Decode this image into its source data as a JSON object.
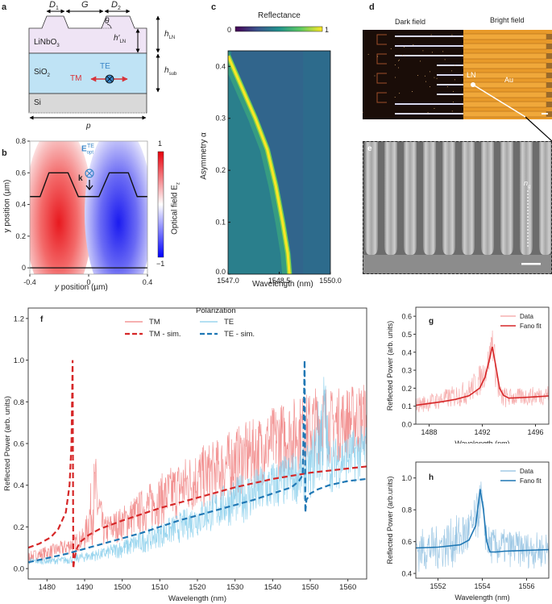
{
  "panels": {
    "a": {
      "label": "a",
      "dims": {
        "D1": "D",
        "D1_sub": "1",
        "G": "G",
        "D2": "D",
        "D2_sub": "2",
        "theta": "θ",
        "h_LN_prime": "h′",
        "h_LN_prime_sub": "LN",
        "h_LN": "h",
        "h_LN_sub": "LN",
        "h_sub": "h",
        "h_sub_sub": "sub",
        "p": "p"
      },
      "layers": [
        {
          "name": "LiNbO",
          "sub": "3",
          "color": "#efe4f5"
        },
        {
          "name": "SiO",
          "sub": "2",
          "color": "#bfe3f5"
        },
        {
          "name": "Si",
          "sub": "",
          "color": "#d9d9d9"
        }
      ],
      "polarization": {
        "te": "TE",
        "tm": "TM",
        "te_color": "#3a86c8",
        "tm_color": "#d8343a"
      }
    },
    "b": {
      "label": "b",
      "xlabel": "y position (µm)",
      "ylabel": "y position (µm)",
      "xticks": [
        "-0.4",
        "0",
        "0.4"
      ],
      "yticks": [
        "0",
        "0.2",
        "0.4",
        "0.6",
        "0.8"
      ],
      "annot_e": "E",
      "annot_e_sup": "TE",
      "annot_e_sub": "opt",
      "annot_k": "k",
      "colorbar_label": "Optical field E",
      "colorbar_label_sub": "z",
      "colorbar_max": "1",
      "colorbar_min": "−1"
    },
    "c": {
      "label": "c",
      "colorbar_title": "Reflectance",
      "colorbar_min": "0",
      "colorbar_max": "1",
      "xlabel": "Wavelength (nm)",
      "ylabel": "Asymmetry α"
    },
    "d": {
      "label": "d",
      "dark_field": "Dark field",
      "bright_field": "Bright field",
      "ln_label": "LN",
      "au_label": "Au"
    },
    "e": {
      "label": "e",
      "n_label": "n",
      "n_sub": "g"
    },
    "f": {
      "label": "f"
    },
    "g": {
      "label": "g"
    },
    "h": {
      "label": "h"
    }
  },
  "chart_data": [
    {
      "id": "b",
      "type": "heatmap",
      "title": "",
      "xlabel": "y position (µm)",
      "ylabel": "y position (µm)",
      "xlim": [
        -0.4,
        0.4
      ],
      "ylim": [
        -0.04,
        0.8
      ],
      "xticks": [
        -0.4,
        0,
        0.4
      ],
      "yticks": [
        0,
        0.2,
        0.4,
        0.6,
        0.8
      ],
      "field": "E_z, antisymmetric: positive lobe centered near x=-0.2, negative lobe near x=0.2, peak at y≈0.25",
      "profile_outline": [
        [
          -0.4,
          0.45
        ],
        [
          -0.33,
          0.45
        ],
        [
          -0.27,
          0.6
        ],
        [
          -0.14,
          0.6
        ],
        [
          -0.07,
          0.45
        ],
        [
          0.07,
          0.45
        ],
        [
          0.14,
          0.6
        ],
        [
          0.27,
          0.6
        ],
        [
          0.33,
          0.45
        ],
        [
          0.4,
          0.45
        ]
      ],
      "substrate_line_y": 0,
      "colorbar": {
        "label": "Optical field E_z",
        "min": -1,
        "max": 1,
        "colormap": "bwr"
      }
    },
    {
      "id": "c",
      "type": "heatmap",
      "title": "Reflectance",
      "xlabel": "Wavelength (nm)",
      "ylabel": "Asymmetry α",
      "xlim": [
        1547.0,
        1550.0
      ],
      "ylim": [
        0.0,
        0.43
      ],
      "xticks": [
        1547.0,
        1548.5,
        1550.0
      ],
      "xtick_labels": [
        "1547.0",
        "1548.5",
        "1550.0"
      ],
      "yticks": [
        0.0,
        0.1,
        0.2,
        0.3,
        0.4
      ],
      "ytick_labels": [
        "0.0",
        "0.1",
        "0.2",
        "0.3",
        "0.4"
      ],
      "resonance_ridge": [
        [
          1547.0,
          0.42
        ],
        [
          1547.4,
          0.36
        ],
        [
          1547.8,
          0.3
        ],
        [
          1548.15,
          0.24
        ],
        [
          1548.4,
          0.17
        ],
        [
          1548.6,
          0.1
        ],
        [
          1548.75,
          0.04
        ],
        [
          1548.8,
          0.0
        ]
      ],
      "background_value": 0.45,
      "colorbar": {
        "min": 0,
        "max": 1,
        "colormap": "viridis",
        "placement": "top"
      }
    },
    {
      "id": "f",
      "type": "line",
      "xlabel": "Wavelength (nm)",
      "ylabel": "Reflected Power (arb. units)",
      "xlim": [
        1475,
        1565
      ],
      "ylim": [
        -0.05,
        1.25
      ],
      "xticks": [
        1480,
        1490,
        1500,
        1510,
        1520,
        1530,
        1540,
        1550,
        1560
      ],
      "yticks": [
        0.0,
        0.2,
        0.4,
        0.6,
        0.8,
        1.0,
        1.2
      ],
      "ytick_labels": [
        "0.0",
        "0.2",
        "0.4",
        "0.6",
        "0.8",
        "1.0",
        "1.2"
      ],
      "legend": {
        "title": "Polarization",
        "placement": "top-center",
        "entries": [
          "TM",
          "TE",
          "TM - sim.",
          "TE - sim."
        ]
      },
      "series": [
        {
          "name": "TM",
          "style": "solid-noisy",
          "color": "#f08080",
          "x": [
            1475,
            1480,
            1485,
            1490,
            1492.8,
            1495,
            1500,
            1505,
            1510,
            1515,
            1520,
            1525,
            1530,
            1535,
            1540,
            1545,
            1550,
            1553.5,
            1555,
            1560,
            1565
          ],
          "y_low": [
            0.03,
            0.04,
            0.06,
            0.09,
            0.12,
            0.1,
            0.13,
            0.16,
            0.2,
            0.23,
            0.27,
            0.3,
            0.34,
            0.38,
            0.42,
            0.45,
            0.48,
            0.5,
            0.5,
            0.52,
            0.55
          ],
          "y_high": [
            0.08,
            0.11,
            0.14,
            0.2,
            0.57,
            0.25,
            0.3,
            0.38,
            0.45,
            0.52,
            0.58,
            0.62,
            0.68,
            0.72,
            0.78,
            0.82,
            0.85,
            0.92,
            0.86,
            0.88,
            0.9
          ]
        },
        {
          "name": "TE",
          "style": "solid-noisy",
          "color": "#87ceeb",
          "x": [
            1475,
            1480,
            1485,
            1490,
            1495,
            1500,
            1505,
            1510,
            1515,
            1520,
            1525,
            1530,
            1535,
            1540,
            1545,
            1550,
            1553.9,
            1555,
            1560,
            1565
          ],
          "y_low": [
            0.02,
            0.02,
            0.02,
            0.03,
            0.04,
            0.05,
            0.07,
            0.1,
            0.12,
            0.15,
            0.18,
            0.21,
            0.23,
            0.26,
            0.3,
            0.33,
            0.38,
            0.36,
            0.4,
            0.42
          ],
          "y_high": [
            0.05,
            0.05,
            0.06,
            0.08,
            0.1,
            0.14,
            0.18,
            0.22,
            0.27,
            0.32,
            0.38,
            0.44,
            0.48,
            0.52,
            0.56,
            0.6,
            1.0,
            0.62,
            0.66,
            0.7
          ]
        },
        {
          "name": "TM - sim.",
          "style": "dashed",
          "color": "#d62728",
          "x": [
            1475,
            1478,
            1481,
            1483,
            1485,
            1486,
            1486.5,
            1486.8,
            1487.0,
            1487.3,
            1488,
            1489,
            1491,
            1494,
            1500,
            1510,
            1520,
            1530,
            1540,
            1550,
            1560,
            1565
          ],
          "y": [
            0.1,
            0.12,
            0.15,
            0.19,
            0.27,
            0.4,
            0.6,
            1.0,
            0.0,
            0.05,
            0.1,
            0.13,
            0.16,
            0.19,
            0.23,
            0.29,
            0.34,
            0.39,
            0.43,
            0.46,
            0.48,
            0.49
          ]
        },
        {
          "name": "TE - sim.",
          "style": "dashed",
          "color": "#1f77b4",
          "x": [
            1475,
            1485,
            1495,
            1505,
            1515,
            1525,
            1535,
            1540,
            1545,
            1547,
            1548,
            1548.5,
            1548.7,
            1549,
            1550,
            1552,
            1555,
            1560,
            1565
          ],
          "y": [
            0.03,
            0.07,
            0.12,
            0.17,
            0.23,
            0.28,
            0.33,
            0.36,
            0.39,
            0.42,
            0.45,
            1.0,
            0.27,
            0.33,
            0.36,
            0.38,
            0.4,
            0.42,
            0.43
          ]
        }
      ]
    },
    {
      "id": "g",
      "type": "line",
      "xlabel": "Wavelength (nm)",
      "ylabel": "Reflected Power (arb. units)",
      "xlim": [
        1487,
        1497
      ],
      "ylim": [
        0.0,
        0.65
      ],
      "xticks": [
        1488,
        1492,
        1496
      ],
      "yticks": [
        0.0,
        0.1,
        0.2,
        0.3,
        0.4,
        0.5,
        0.6
      ],
      "ytick_labels": [
        "0.0",
        "0.1",
        "0.2",
        "0.3",
        "0.4",
        "0.5",
        "0.6"
      ],
      "legend": {
        "placement": "top-right",
        "entries": [
          "Data",
          "Fano fit"
        ]
      },
      "series": [
        {
          "name": "Data",
          "style": "solid-noisy",
          "color": "#f4a0a0",
          "x": [
            1487,
            1488,
            1489,
            1490,
            1491,
            1491.8,
            1492.3,
            1492.6,
            1492.75,
            1493,
            1493.3,
            1494,
            1495,
            1496,
            1497
          ],
          "y_low": [
            0.06,
            0.07,
            0.08,
            0.09,
            0.11,
            0.15,
            0.22,
            0.3,
            0.38,
            0.2,
            0.08,
            0.09,
            0.1,
            0.1,
            0.11
          ],
          "y_high": [
            0.15,
            0.17,
            0.19,
            0.22,
            0.25,
            0.33,
            0.38,
            0.48,
            0.58,
            0.4,
            0.22,
            0.2,
            0.2,
            0.21,
            0.22
          ]
        },
        {
          "name": "Fano fit",
          "style": "solid",
          "color": "#d62728",
          "x": [
            1487,
            1488,
            1489,
            1490,
            1491,
            1491.8,
            1492.2,
            1492.5,
            1492.75,
            1493,
            1493.3,
            1493.6,
            1494,
            1495,
            1496,
            1497
          ],
          "y": [
            0.105,
            0.115,
            0.125,
            0.138,
            0.158,
            0.2,
            0.26,
            0.35,
            0.43,
            0.33,
            0.2,
            0.16,
            0.145,
            0.148,
            0.152,
            0.157
          ]
        }
      ]
    },
    {
      "id": "h",
      "type": "line",
      "xlabel": "Wavelength (nm)",
      "ylabel": "Reflected Power (arb.units)",
      "xlim": [
        1551,
        1557
      ],
      "ylim": [
        0.37,
        1.1
      ],
      "xticks": [
        1552,
        1554,
        1556
      ],
      "yticks": [
        0.4,
        0.6,
        0.8,
        1.0
      ],
      "ytick_labels": [
        "0.4",
        "0.6",
        "0.8",
        "1.0"
      ],
      "legend": {
        "placement": "top-right",
        "entries": [
          "Data",
          "Fano fit"
        ]
      },
      "series": [
        {
          "name": "Data",
          "style": "solid-noisy",
          "color": "#8fbfe0",
          "x": [
            1551,
            1552,
            1553,
            1553.5,
            1553.8,
            1553.95,
            1554.1,
            1554.3,
            1554.6,
            1555,
            1556,
            1557
          ],
          "y_low": [
            0.4,
            0.42,
            0.44,
            0.5,
            0.6,
            0.8,
            0.55,
            0.46,
            0.44,
            0.44,
            0.43,
            0.43
          ],
          "y_high": [
            0.68,
            0.7,
            0.78,
            0.82,
            0.92,
            1.0,
            0.8,
            0.7,
            0.68,
            0.68,
            0.66,
            0.66
          ]
        },
        {
          "name": "Fano fit",
          "style": "solid",
          "color": "#1f77b4",
          "x": [
            1551,
            1552,
            1553,
            1553.4,
            1553.7,
            1553.9,
            1554.05,
            1554.2,
            1554.35,
            1554.6,
            1555,
            1556,
            1557
          ],
          "y": [
            0.56,
            0.565,
            0.58,
            0.61,
            0.7,
            0.93,
            0.8,
            0.6,
            0.535,
            0.535,
            0.54,
            0.545,
            0.55
          ]
        }
      ]
    }
  ]
}
